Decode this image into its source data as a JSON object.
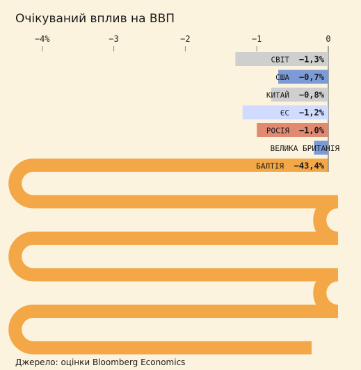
{
  "chart_data": {
    "type": "bar",
    "orientation": "horizontal",
    "title": "Очікуваний вплив на ВВП",
    "xlim": [
      -4.15,
      0.15
    ],
    "ticks": [
      {
        "value": -4,
        "label": "−4%"
      },
      {
        "value": -3,
        "label": "−3"
      },
      {
        "value": -2,
        "label": "−2"
      },
      {
        "value": -1,
        "label": "−1"
      },
      {
        "value": 0,
        "label": "0"
      }
    ],
    "bars": [
      {
        "name": "СВІТ",
        "value": -1.3,
        "label": "−1,3%",
        "color": "#cfcfcf"
      },
      {
        "name": "США",
        "value": -0.7,
        "label": "−0,7%",
        "color": "#7b9ad6"
      },
      {
        "name": "КИТАЙ",
        "value": -0.8,
        "label": "−0,8%",
        "color": "#cfcfcf"
      },
      {
        "name": "ЄС",
        "value": -1.2,
        "label": "−1,2%",
        "color": "#d0dbff"
      },
      {
        "name": "РОСІЯ",
        "value": -1.0,
        "label": "−1,0%",
        "color": "#e08a72"
      },
      {
        "name": "ВЕЛИКА БРИТАНІЯ",
        "value": -0.2,
        "label": "",
        "color": "#7b9ad6"
      }
    ],
    "outlier": {
      "name": "БАЛТІЯ",
      "value": -43.4,
      "label": "−43,4%",
      "color": "#f3a746"
    }
  },
  "source": "Джерело: оцінки Bloomberg Economics"
}
